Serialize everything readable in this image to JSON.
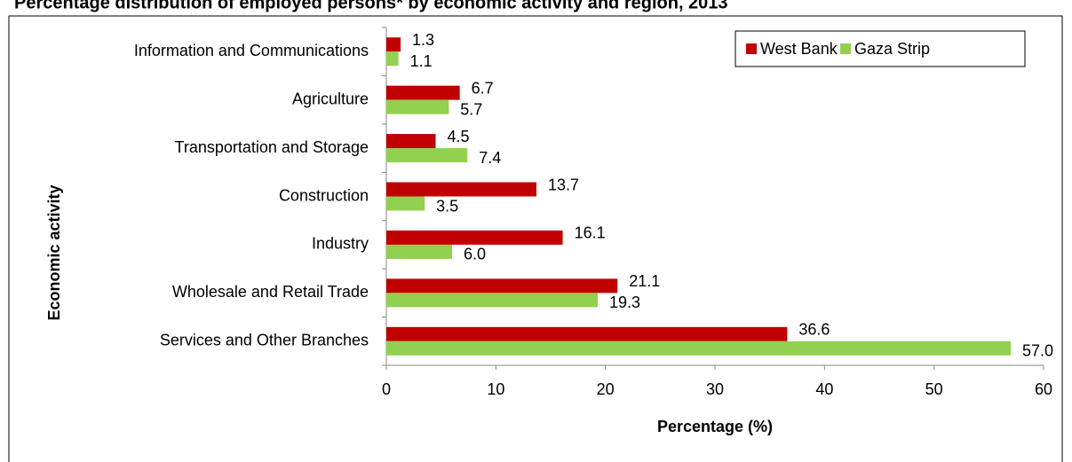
{
  "chart_data": {
    "type": "bar",
    "orientation": "horizontal",
    "title": "Percentage distribution of employed persons* by economic activity and region, 2013",
    "x_label": "Percentage (%)",
    "y_label": "Economic activity",
    "categories": [
      "Information and Communications",
      "Agriculture",
      "Transportation and Storage",
      "Construction",
      "Industry",
      "Wholesale and Retail Trade",
      "Services and Other Branches"
    ],
    "series": [
      {
        "name": "West Bank",
        "color": "#c00000",
        "values": [
          1.3,
          6.7,
          4.5,
          13.7,
          16.1,
          21.1,
          36.6
        ],
        "value_labels": [
          "1.3",
          "6.7",
          "4.5",
          "13.7",
          "16.1",
          "21.1",
          "36.6"
        ]
      },
      {
        "name": "Gaza Strip",
        "color": "#92d050",
        "values": [
          1.1,
          5.7,
          7.4,
          3.5,
          6.0,
          19.3,
          57.0
        ],
        "value_labels": [
          "1.1",
          "5.7",
          "7.4",
          "3.5",
          "6.0",
          "19.3",
          "57.0"
        ]
      }
    ],
    "xlim": [
      0,
      60
    ],
    "xticks": [
      0,
      10,
      20,
      30,
      40,
      50,
      60
    ],
    "legend": "upper right"
  }
}
